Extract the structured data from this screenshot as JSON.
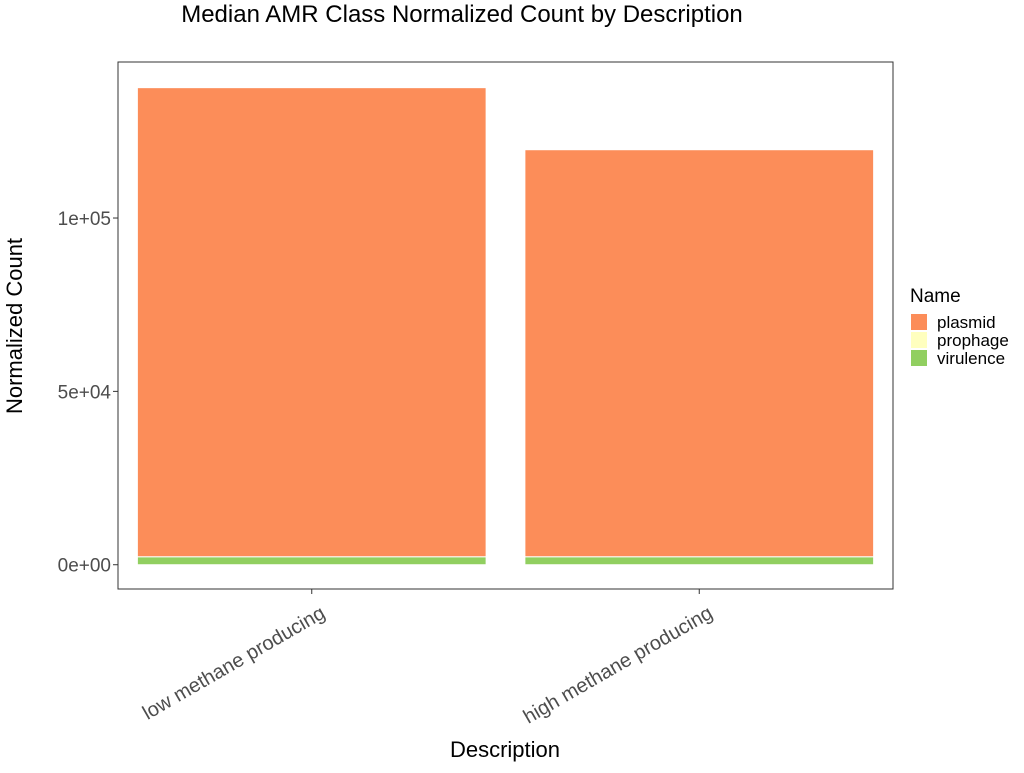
{
  "chart_data": {
    "type": "bar",
    "stacked": true,
    "title": "Median AMR Class Normalized Count by Description",
    "xlabel": "Description",
    "ylabel": "Normalized Count",
    "categories": [
      "low methane producing",
      "high methane producing"
    ],
    "series": [
      {
        "name": "plasmid",
        "color": "#fc8d59",
        "values": [
          135300,
          117400
        ]
      },
      {
        "name": "prophage",
        "color": "#ffffbf",
        "values": [
          0,
          0
        ]
      },
      {
        "name": "virulence",
        "color": "#91cf60",
        "values": [
          2300,
          2300
        ]
      }
    ],
    "stack_order_bottom_to_top": [
      "virulence",
      "prophage",
      "plasmid"
    ],
    "ylim": [
      -7000,
      145000
    ],
    "yticks": [
      0,
      50000,
      100000
    ],
    "ytick_labels": [
      "0e+00",
      "5e+04",
      "1e+05"
    ],
    "legend": {
      "title": "Name",
      "position": "right"
    },
    "grid": false
  }
}
